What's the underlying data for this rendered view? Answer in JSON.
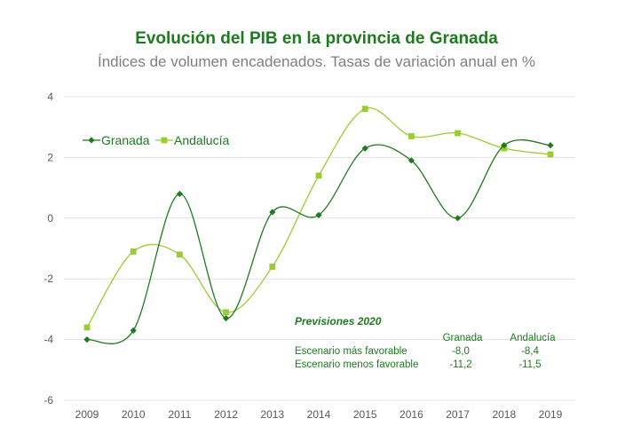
{
  "chart_data": {
    "type": "line",
    "title": "Evolución del PIB en la provincia de Granada",
    "subtitle": "Índices de volumen encadenados. Tasas de variación anual en %",
    "categories": [
      "2009",
      "2010",
      "2011",
      "2012",
      "2013",
      "2014",
      "2015",
      "2016",
      "2017",
      "2018",
      "2019"
    ],
    "y_ticks": [
      "4",
      "2",
      "0",
      "-2",
      "-4",
      "-6"
    ],
    "ylim": [
      -6,
      4
    ],
    "grid": true,
    "legend_position": "top-left",
    "series": [
      {
        "name": "Granada",
        "color": "#1e7a1e",
        "marker": "diamond",
        "values": [
          -4.0,
          -3.7,
          0.8,
          -3.3,
          0.2,
          0.1,
          2.3,
          1.9,
          0.0,
          2.4,
          2.4
        ]
      },
      {
        "name": "Andalucía",
        "color": "#9acd32",
        "marker": "square",
        "values": [
          -3.6,
          -1.1,
          -1.2,
          -3.1,
          -1.6,
          1.4,
          3.6,
          2.7,
          2.8,
          2.3,
          2.1
        ]
      }
    ],
    "annotations": {
      "forecast_title": "Previsiones 2020",
      "columns": [
        "Granada",
        "Andalucía"
      ],
      "rows": [
        {
          "label": "Escenario más favorable",
          "values": [
            "-8,0",
            "-8,4"
          ]
        },
        {
          "label": "Escenario menos favorable",
          "values": [
            "-11,2",
            "-11,5"
          ]
        }
      ]
    }
  }
}
